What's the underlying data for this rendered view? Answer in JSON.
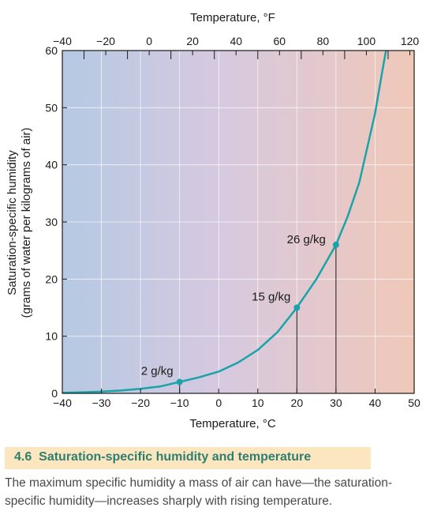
{
  "figure": {
    "number": "4.6",
    "title": "Saturation-specific humidity and temperature",
    "caption": "The maximum specific humidity a mass of air can have—the saturation-specific humidity—increases sharply with rising temperature."
  },
  "chart_data": {
    "type": "line",
    "title": "",
    "xlabel": "Temperature, °C",
    "x2label": "Temperature, °F",
    "ylabel_line1": "Saturation-specific humidity",
    "ylabel_line2": "(grams of water per kilograms of air)",
    "xlim": [
      -40,
      50
    ],
    "ylim": [
      0,
      60
    ],
    "x_ticks": [
      -40,
      -30,
      -20,
      -10,
      0,
      10,
      20,
      30,
      40,
      50
    ],
    "x2_ticks": [
      -40,
      -20,
      0,
      20,
      40,
      60,
      80,
      100,
      120
    ],
    "y_ticks": [
      0,
      10,
      20,
      30,
      40,
      50,
      60
    ],
    "grid": true,
    "background": "gradient cool-to-warm",
    "series": [
      {
        "color": "#1aa3a8",
        "x": [
          -40,
          -35,
          -30,
          -25,
          -20,
          -15,
          -10,
          -5,
          0,
          5,
          10,
          15,
          20,
          25,
          30,
          33,
          36,
          38,
          40,
          41,
          42,
          42.8
        ],
        "y": [
          0.1,
          0.2,
          0.3,
          0.5,
          0.8,
          1.2,
          2,
          2.8,
          3.8,
          5.4,
          7.6,
          10.7,
          15,
          20,
          26,
          31,
          37,
          43,
          49,
          53,
          57,
          60
        ]
      }
    ],
    "highlight_points": [
      {
        "x": -10,
        "y": 2,
        "label": "2 g/kg"
      },
      {
        "x": 20,
        "y": 15,
        "label": "15 g/kg"
      },
      {
        "x": 30,
        "y": 26,
        "label": "26 g/kg"
      }
    ],
    "colors": {
      "curve": "#1aa3a8",
      "bg_cold": "#b6c9e3",
      "bg_warm": "#f0c8b8",
      "grid": "#ffffff"
    }
  }
}
